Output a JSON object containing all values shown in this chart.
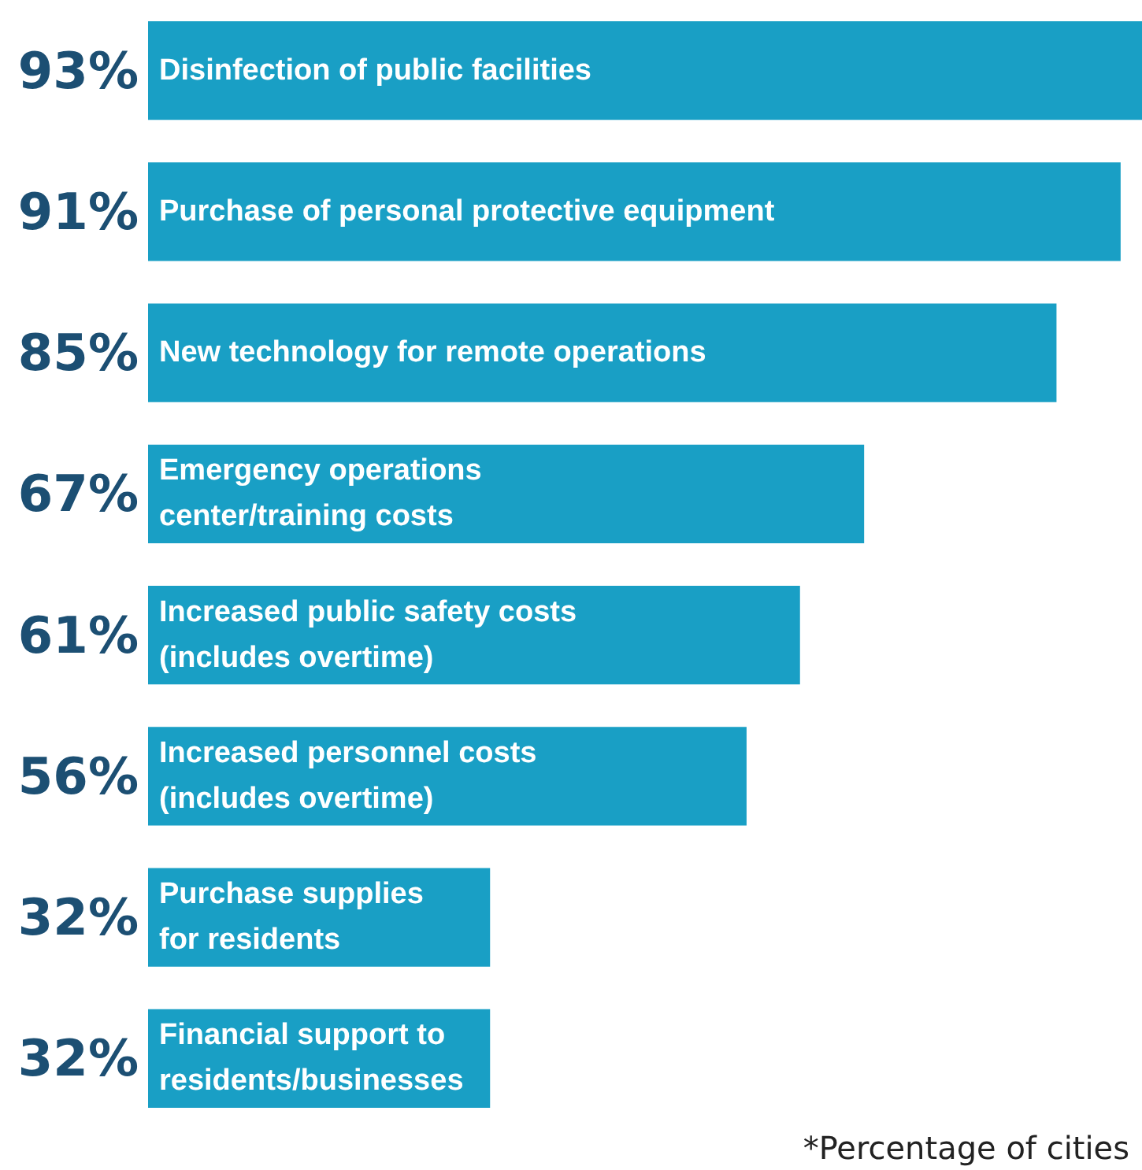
{
  "chart_data": {
    "type": "bar",
    "orientation": "horizontal",
    "categories": [
      "Disinfection of public facilities",
      "Purchase of personal protective equipment",
      "New technology for remote operations",
      "Emergency operations\ncenter/training costs",
      "Increased public safety costs\n(includes overtime)",
      "Increased personnel costs\n(includes overtime)",
      "Purchase supplies\nfor residents",
      "Financial support to\nresidents/businesses"
    ],
    "values": [
      93,
      91,
      85,
      67,
      61,
      56,
      32,
      32
    ],
    "value_labels": [
      "93%",
      "91%",
      "85%",
      "67%",
      "61%",
      "56%",
      "32%",
      "32%"
    ],
    "color": "#199fc5",
    "annotations": [
      "*Percentage of cities"
    ]
  }
}
